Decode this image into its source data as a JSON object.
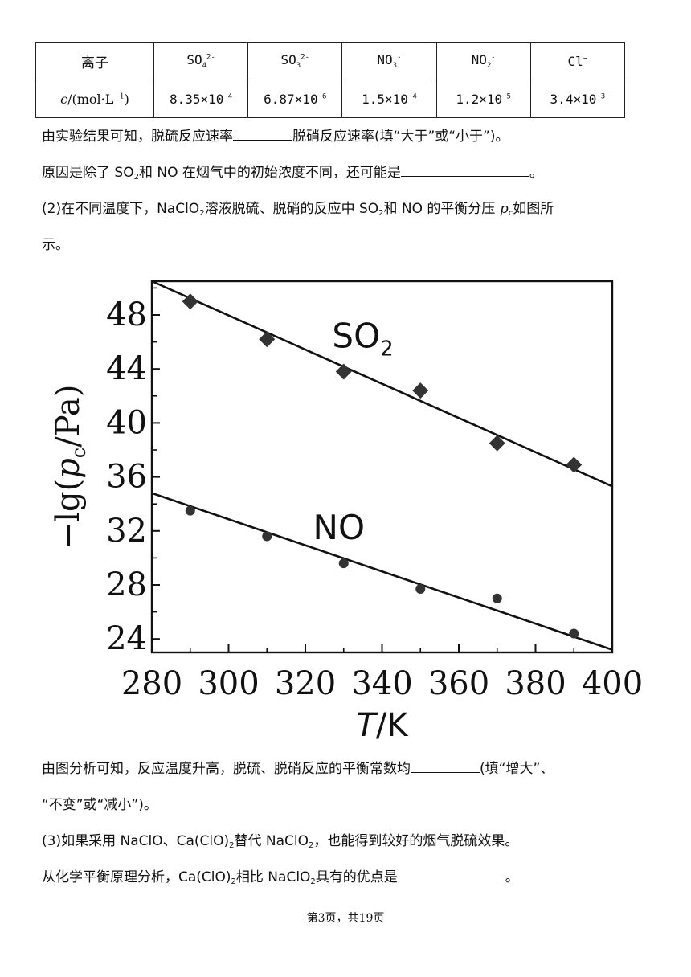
{
  "table": {
    "row1_header": "离子",
    "ions": [
      {
        "base": "SO",
        "sub": "4",
        "sup": "2-"
      },
      {
        "base": "SO",
        "sub": "3",
        "sup": "2-"
      },
      {
        "base": "NO",
        "sub": "3",
        "sup": "-"
      },
      {
        "base": "NO",
        "sub": "2",
        "sup": "-"
      },
      {
        "base": "Cl",
        "sub": "",
        "sup": "−"
      }
    ],
    "row2_header_italic": "c",
    "row2_header_rest": "/(mol·L",
    "row2_header_exp": "−1",
    "row2_header_close": ")",
    "values": [
      {
        "mant": "8.35×10",
        "exp": "−4"
      },
      {
        "mant": "6.87×10",
        "exp": "−6"
      },
      {
        "mant": "1.5×10",
        "exp": "−4"
      },
      {
        "mant": "1.2×10",
        "exp": "−5"
      },
      {
        "mant": "3.4×10",
        "exp": "−3"
      }
    ]
  },
  "lines": {
    "l1a": "由实验结果可知，脱硫反应速率",
    "l1b": "脱硝反应速率(填“大于”或“小于”)。",
    "l2a": "原因是除了 SO",
    "l2b": "2",
    "l2c": "和 NO 在烟气中的初始浓度不同，还可能是",
    "l2d": "。",
    "l3a": "(2)在不同温度下，NaClO",
    "l3b": "2",
    "l3c": "溶液脱硫、脱硝的反应中 SO",
    "l3d": "2",
    "l3e": "和 NO 的平衡分压 ",
    "l3f": "p",
    "l3g": "c",
    "l3h": "如图所",
    "l4": "示。",
    "l5a": "由图分析可知，反应温度升高，脱硫、脱硝反应的平衡常数均",
    "l5b": "(填“增大”、",
    "l6": "“不变”或“减小”)。",
    "l7a": "(3)如果采用 NaClO、Ca(ClO)",
    "l7b": "2",
    "l7c": "替代 NaClO",
    "l7d": "2",
    "l7e": "，也能得到较好的烟气脱硫效果。",
    "l8a": "从化学平衡原理分析，Ca(ClO)",
    "l8b": "2",
    "l8c": "相比 NaClO",
    "l8d": "2",
    "l8e": "具有的优点是",
    "l8f": "。"
  },
  "footer": "第3页，共19页",
  "chart_data": {
    "type": "scatter",
    "xlim": [
      280,
      400
    ],
    "ylim": [
      23,
      50.5
    ],
    "x_ticks": [
      280,
      300,
      320,
      340,
      360,
      380,
      400
    ],
    "y_ticks": [
      24,
      28,
      32,
      36,
      40,
      44,
      48
    ],
    "xlabel_italic": "T",
    "xlabel_rest": "/K",
    "ylabel_pre": "−lg(",
    "ylabel_italic": "p",
    "ylabel_sub": "c",
    "ylabel_post": "/Pa)",
    "series": [
      {
        "name": "SO",
        "name_sub": "2",
        "marker": "diamond",
        "x": [
          290,
          310,
          330,
          350,
          370,
          390
        ],
        "y": [
          49.0,
          46.2,
          43.8,
          42.4,
          38.5,
          36.9
        ],
        "fit_line": [
          [
            280,
            50.5
          ],
          [
            400,
            35.3
          ]
        ]
      },
      {
        "name": "NO",
        "name_sub": "",
        "marker": "circle",
        "x": [
          290,
          310,
          330,
          350,
          370,
          390
        ],
        "y": [
          33.5,
          31.6,
          29.6,
          27.7,
          27.0,
          24.4
        ],
        "fit_line": [
          [
            280,
            34.8
          ],
          [
            400,
            23.2
          ]
        ]
      }
    ],
    "grid": false,
    "legend": "none"
  }
}
